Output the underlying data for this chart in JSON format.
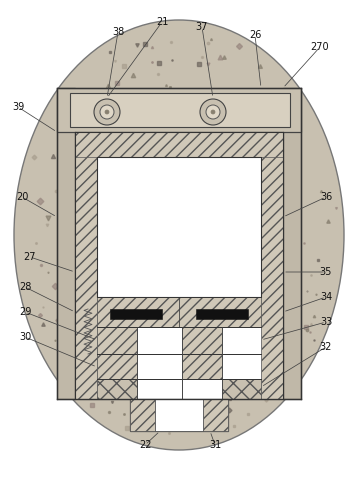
{
  "fig_width": 3.58,
  "fig_height": 4.87,
  "dpi": 100,
  "bg_color": "#ffffff",
  "soil_color": "#c8c0b0",
  "soil_ec": "#888888",
  "device_gray": "#b0a898",
  "hatch_bg": "#d8d0c8",
  "white": "#ffffff",
  "dark": "#333333",
  "label_fs": 7.0,
  "label_color": "#111111",
  "ann_lw": 0.55,
  "ann_color": "#444444"
}
